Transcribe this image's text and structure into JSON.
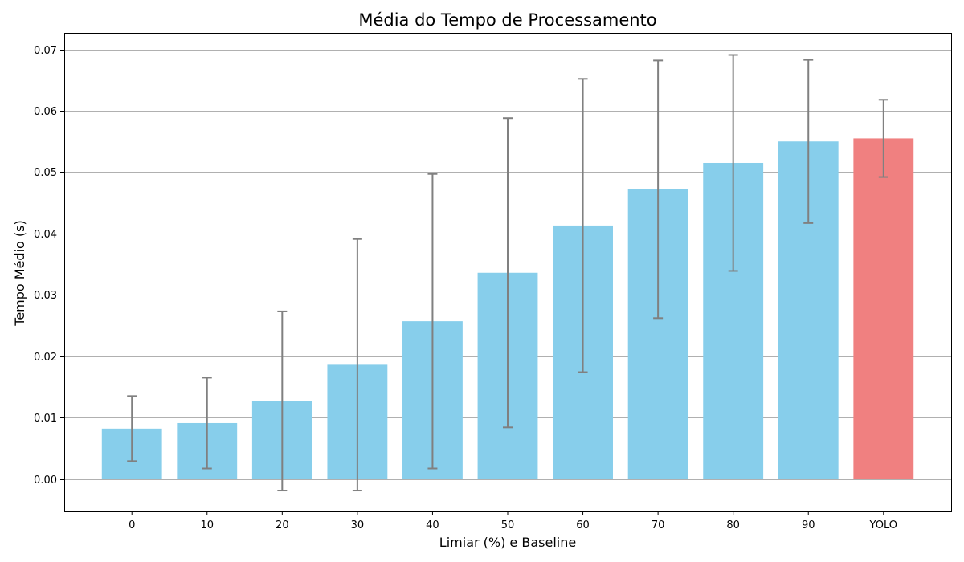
{
  "chart_data": {
    "type": "bar",
    "title": "Média do Tempo de Processamento",
    "xlabel": "Limiar (%) e Baseline",
    "ylabel": "Tempo Médio (s)",
    "ylim": [
      -0.0053,
      0.0727
    ],
    "yticks": [
      "0.00",
      "0.01",
      "0.02",
      "0.03",
      "0.04",
      "0.05",
      "0.06",
      "0.07"
    ],
    "grid": "y",
    "categories": [
      "0",
      "10",
      "20",
      "30",
      "40",
      "50",
      "60",
      "70",
      "80",
      "90",
      "YOLO"
    ],
    "values": [
      0.0082,
      0.0091,
      0.0127,
      0.0186,
      0.0257,
      0.0336,
      0.0413,
      0.0472,
      0.0515,
      0.055,
      0.0555
    ],
    "errors": [
      0.0053,
      0.0074,
      0.0146,
      0.0205,
      0.024,
      0.0252,
      0.0239,
      0.021,
      0.0176,
      0.0133,
      0.0063
    ],
    "colors": [
      "#87ceeb",
      "#87ceeb",
      "#87ceeb",
      "#87ceeb",
      "#87ceeb",
      "#87ceeb",
      "#87ceeb",
      "#87ceeb",
      "#87ceeb",
      "#87ceeb",
      "#f08080"
    ],
    "error_color": "#808080"
  }
}
